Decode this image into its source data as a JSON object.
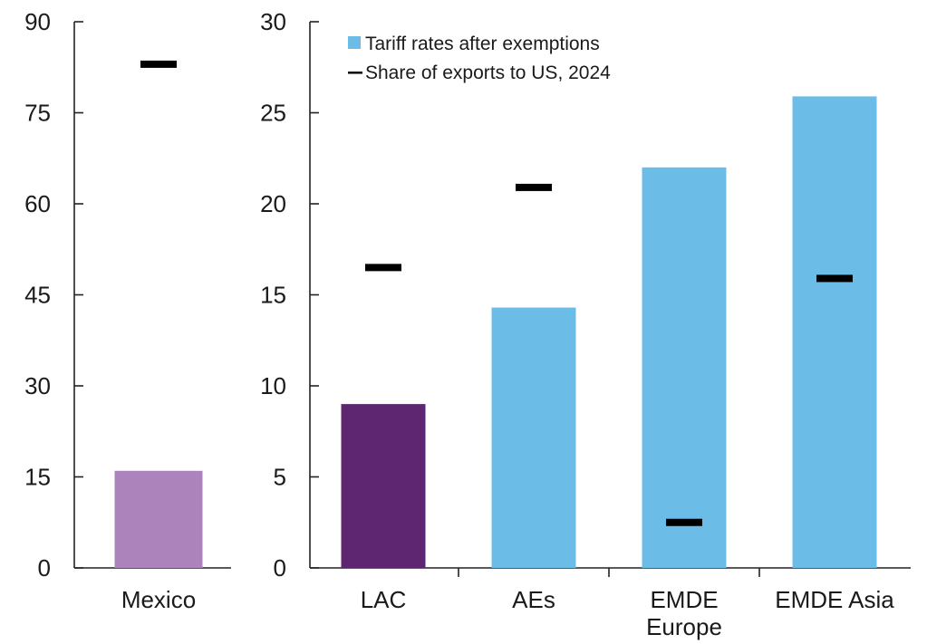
{
  "chart_data": [
    {
      "type": "bar",
      "panel": "left",
      "categories": [
        "Mexico"
      ],
      "series": [
        {
          "name": "",
          "values": [
            16
          ],
          "color": "#AC83BA"
        },
        {
          "name": "",
          "markers": [
            83
          ],
          "color": "#000000"
        }
      ],
      "ylim": [
        0,
        90
      ],
      "yticks": [
        "0",
        "15",
        "30",
        "45",
        "60",
        "75",
        "90"
      ],
      "ytick_values": [
        0,
        15,
        30,
        45,
        60,
        75,
        90
      ]
    },
    {
      "type": "bar",
      "panel": "right",
      "categories": [
        [
          "LAC"
        ],
        [
          "AEs"
        ],
        [
          "EMDE",
          "Europe"
        ],
        [
          "EMDE Asia"
        ]
      ],
      "series": [
        {
          "name": "Tariff rates after exemptions",
          "values": [
            9,
            14.3,
            22,
            25.9
          ],
          "colors": [
            "#5E2670",
            "#6CBCE8",
            "#6CBCE8",
            "#6CBCE8"
          ]
        },
        {
          "name": "Share of exports to US, 2024",
          "markers": [
            16.5,
            20.9,
            2.5,
            15.9
          ],
          "color": "#000000"
        }
      ],
      "ylim": [
        0,
        30
      ],
      "yticks": [
        "0",
        "5",
        "10",
        "15",
        "20",
        "25",
        "30"
      ],
      "ytick_values": [
        0,
        5,
        10,
        15,
        20,
        25,
        30
      ],
      "legend": {
        "placement": "top-left",
        "entries": [
          {
            "label": "Tariff rates after exemptions",
            "symbol": "square",
            "color": "#6CBCE8"
          },
          {
            "label": "Share of exports to US, 2024",
            "symbol": "dash",
            "color": "#000000"
          }
        ]
      }
    }
  ]
}
